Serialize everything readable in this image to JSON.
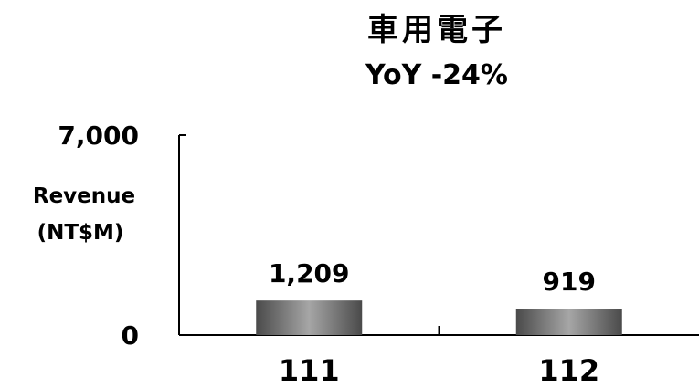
{
  "chart_data": {
    "type": "bar",
    "title": "車用電子",
    "subtitle": "YoY -24%",
    "ylabel_lines": [
      "Revenue",
      "(NT$M)"
    ],
    "categories": [
      "111",
      "112"
    ],
    "values": [
      1209,
      919
    ],
    "data_labels": [
      "1,209",
      "919"
    ],
    "ylim": [
      0,
      7000
    ],
    "yticks": [
      {
        "value": 0,
        "label": "0"
      },
      {
        "value": 7000,
        "label": "7,000"
      }
    ],
    "grid": false,
    "legend": "none",
    "bar_color": "#6e6e6e"
  }
}
